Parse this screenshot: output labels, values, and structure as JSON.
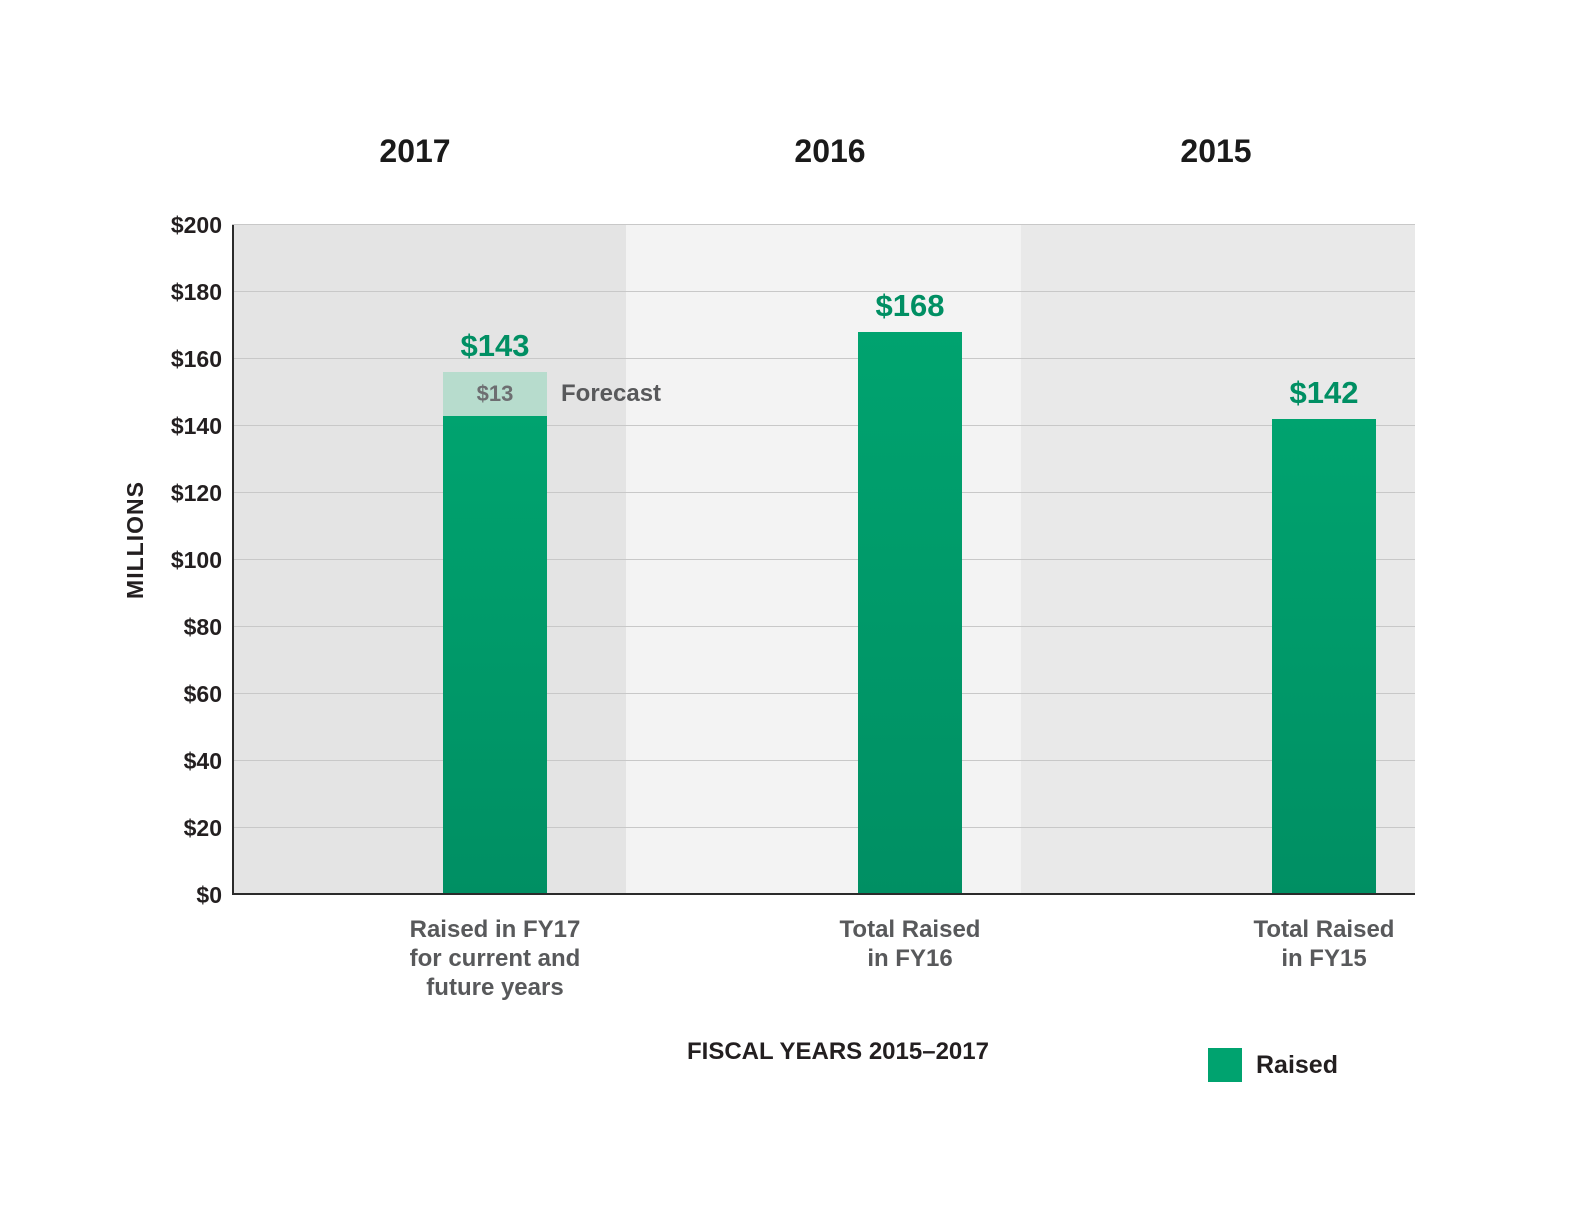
{
  "chart_data": {
    "type": "bar",
    "title": "",
    "ylabel": "MILLIONS",
    "xlabel": "FISCAL YEARS 2015–2017",
    "ylim": [
      0,
      200
    ],
    "ytick_step": 20,
    "ytick_prefix": "$",
    "grid": true,
    "year_headers": [
      "2017",
      "2016",
      "2015"
    ],
    "categories": [
      "Raised in FY17\nfor current and\nfuture years",
      "Total Raised\nin FY16",
      "Total Raised\nin FY15"
    ],
    "series": [
      {
        "name": "Raised",
        "values": [
          143,
          168,
          142
        ],
        "data_labels": [
          "$143",
          "$168",
          "$142"
        ]
      },
      {
        "name": "Forecast",
        "values": [
          13,
          0,
          0
        ],
        "data_labels": [
          "$13",
          "",
          ""
        ],
        "annotation": "Forecast"
      }
    ],
    "legend": [
      {
        "label": "Raised"
      }
    ],
    "legend_position": "bottom-right"
  },
  "colors": {
    "bar_green": "#00a36f",
    "bar_green_dark": "#008f63",
    "value_label_green": "#008f63",
    "forecast_fill": "#b7dccd",
    "forecast_value_text": "#6d6e71",
    "annotation_text": "#58595b",
    "category_text": "#58595b",
    "axis_text": "#231f20",
    "gridline": "#c8c8c8",
    "axis_line": "#2b2b2b",
    "panel_colors": [
      "#e4e4e4",
      "#f3f3f3",
      "#e9e9e9"
    ]
  }
}
